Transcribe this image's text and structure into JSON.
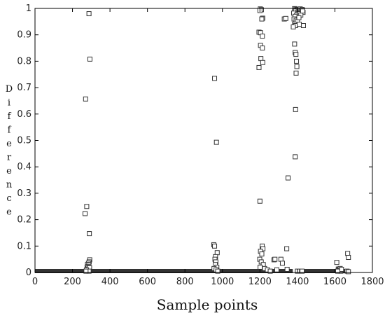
{
  "chart_data": {
    "type": "scatter",
    "title": "",
    "xlabel": "Sample points",
    "ylabel": "Difference",
    "xlim": [
      0,
      1800
    ],
    "ylim": [
      0,
      1
    ],
    "xticks": [
      0,
      200,
      400,
      600,
      800,
      1000,
      1200,
      1400,
      1600,
      1800
    ],
    "yticks": [
      0,
      0.1,
      0.2,
      0.3,
      0.4,
      0.5,
      0.6,
      0.7,
      0.8,
      0.9,
      1
    ],
    "grid": false,
    "legend": "none",
    "marker": "square-open",
    "colors": {
      "marker": "#333333",
      "axis": "#000000",
      "background": "#ffffff"
    },
    "baseline_runs": [
      [
        0,
        1375
      ],
      [
        1435,
        1660
      ]
    ],
    "points": [
      [
        288,
        0.98
      ],
      [
        293,
        0.808
      ],
      [
        270,
        0.657
      ],
      [
        276,
        0.25
      ],
      [
        267,
        0.223
      ],
      [
        290,
        0.147
      ],
      [
        292,
        0.048
      ],
      [
        289,
        0.04
      ],
      [
        285,
        0.035
      ],
      [
        280,
        0.03
      ],
      [
        287,
        0.028
      ],
      [
        283,
        0.022
      ],
      [
        278,
        0.02
      ],
      [
        282,
        0.016
      ],
      [
        286,
        0.012
      ],
      [
        291,
        0.018
      ],
      [
        275,
        0.01
      ],
      [
        288,
        0.005
      ],
      [
        272,
        0.005
      ],
      [
        958,
        0.735
      ],
      [
        968,
        0.493
      ],
      [
        954,
        0.105
      ],
      [
        958,
        0.1
      ],
      [
        972,
        0.075
      ],
      [
        963,
        0.06
      ],
      [
        960,
        0.05
      ],
      [
        965,
        0.04
      ],
      [
        962,
        0.03
      ],
      [
        970,
        0.02
      ],
      [
        955,
        0.015
      ],
      [
        966,
        0.01
      ],
      [
        975,
        0.005
      ],
      [
        1202,
        0.998
      ],
      [
        1208,
        0.995
      ],
      [
        1200,
        0.992
      ],
      [
        1215,
        0.963
      ],
      [
        1210,
        0.96
      ],
      [
        1195,
        0.91
      ],
      [
        1203,
        0.908
      ],
      [
        1213,
        0.895
      ],
      [
        1203,
        0.86
      ],
      [
        1213,
        0.85
      ],
      [
        1205,
        0.81
      ],
      [
        1215,
        0.795
      ],
      [
        1195,
        0.776
      ],
      [
        1200,
        0.27
      ],
      [
        1212,
        0.1
      ],
      [
        1216,
        0.09
      ],
      [
        1203,
        0.08
      ],
      [
        1210,
        0.07
      ],
      [
        1199,
        0.05
      ],
      [
        1207,
        0.04
      ],
      [
        1218,
        0.03
      ],
      [
        1201,
        0.02
      ],
      [
        1225,
        0.015
      ],
      [
        1240,
        0.01
      ],
      [
        1255,
        0.005
      ],
      [
        1275,
        0.048
      ],
      [
        1280,
        0.05
      ],
      [
        1290,
        0.01
      ],
      [
        1312,
        0.05
      ],
      [
        1320,
        0.035
      ],
      [
        1330,
        0.96
      ],
      [
        1338,
        0.962
      ],
      [
        1350,
        0.358
      ],
      [
        1343,
        0.09
      ],
      [
        1345,
        0.012
      ],
      [
        1385,
        0.999
      ],
      [
        1392,
        0.997
      ],
      [
        1398,
        0.995
      ],
      [
        1390,
        0.99
      ],
      [
        1403,
        0.985
      ],
      [
        1380,
        0.982
      ],
      [
        1396,
        0.975
      ],
      [
        1388,
        0.97
      ],
      [
        1382,
        0.96
      ],
      [
        1393,
        0.955
      ],
      [
        1400,
        0.95
      ],
      [
        1385,
        0.94
      ],
      [
        1390,
        0.935
      ],
      [
        1378,
        0.93
      ],
      [
        1405,
        0.995
      ],
      [
        1410,
        0.99
      ],
      [
        1415,
        0.998
      ],
      [
        1420,
        0.993
      ],
      [
        1425,
        0.996
      ],
      [
        1430,
        0.985
      ],
      [
        1412,
        0.98
      ],
      [
        1418,
        0.975
      ],
      [
        1428,
        0.99
      ],
      [
        1408,
        0.965
      ],
      [
        1432,
        0.935
      ],
      [
        1410,
        0.94
      ],
      [
        1385,
        0.865
      ],
      [
        1388,
        0.833
      ],
      [
        1392,
        0.826
      ],
      [
        1395,
        0.8
      ],
      [
        1397,
        0.78
      ],
      [
        1393,
        0.755
      ],
      [
        1390,
        0.617
      ],
      [
        1388,
        0.438
      ],
      [
        1425,
        0.005
      ],
      [
        1400,
        0.005
      ],
      [
        1610,
        0.038
      ],
      [
        1618,
        0.013
      ],
      [
        1622,
        0.01
      ],
      [
        1628,
        0.015
      ],
      [
        1625,
        0.008
      ],
      [
        1632,
        0.005
      ],
      [
        1635,
        0.012
      ],
      [
        1615,
        0.005
      ],
      [
        1668,
        0.072
      ],
      [
        1672,
        0.057
      ],
      [
        1665,
        0.005
      ],
      [
        1672,
        0.003
      ]
    ]
  }
}
